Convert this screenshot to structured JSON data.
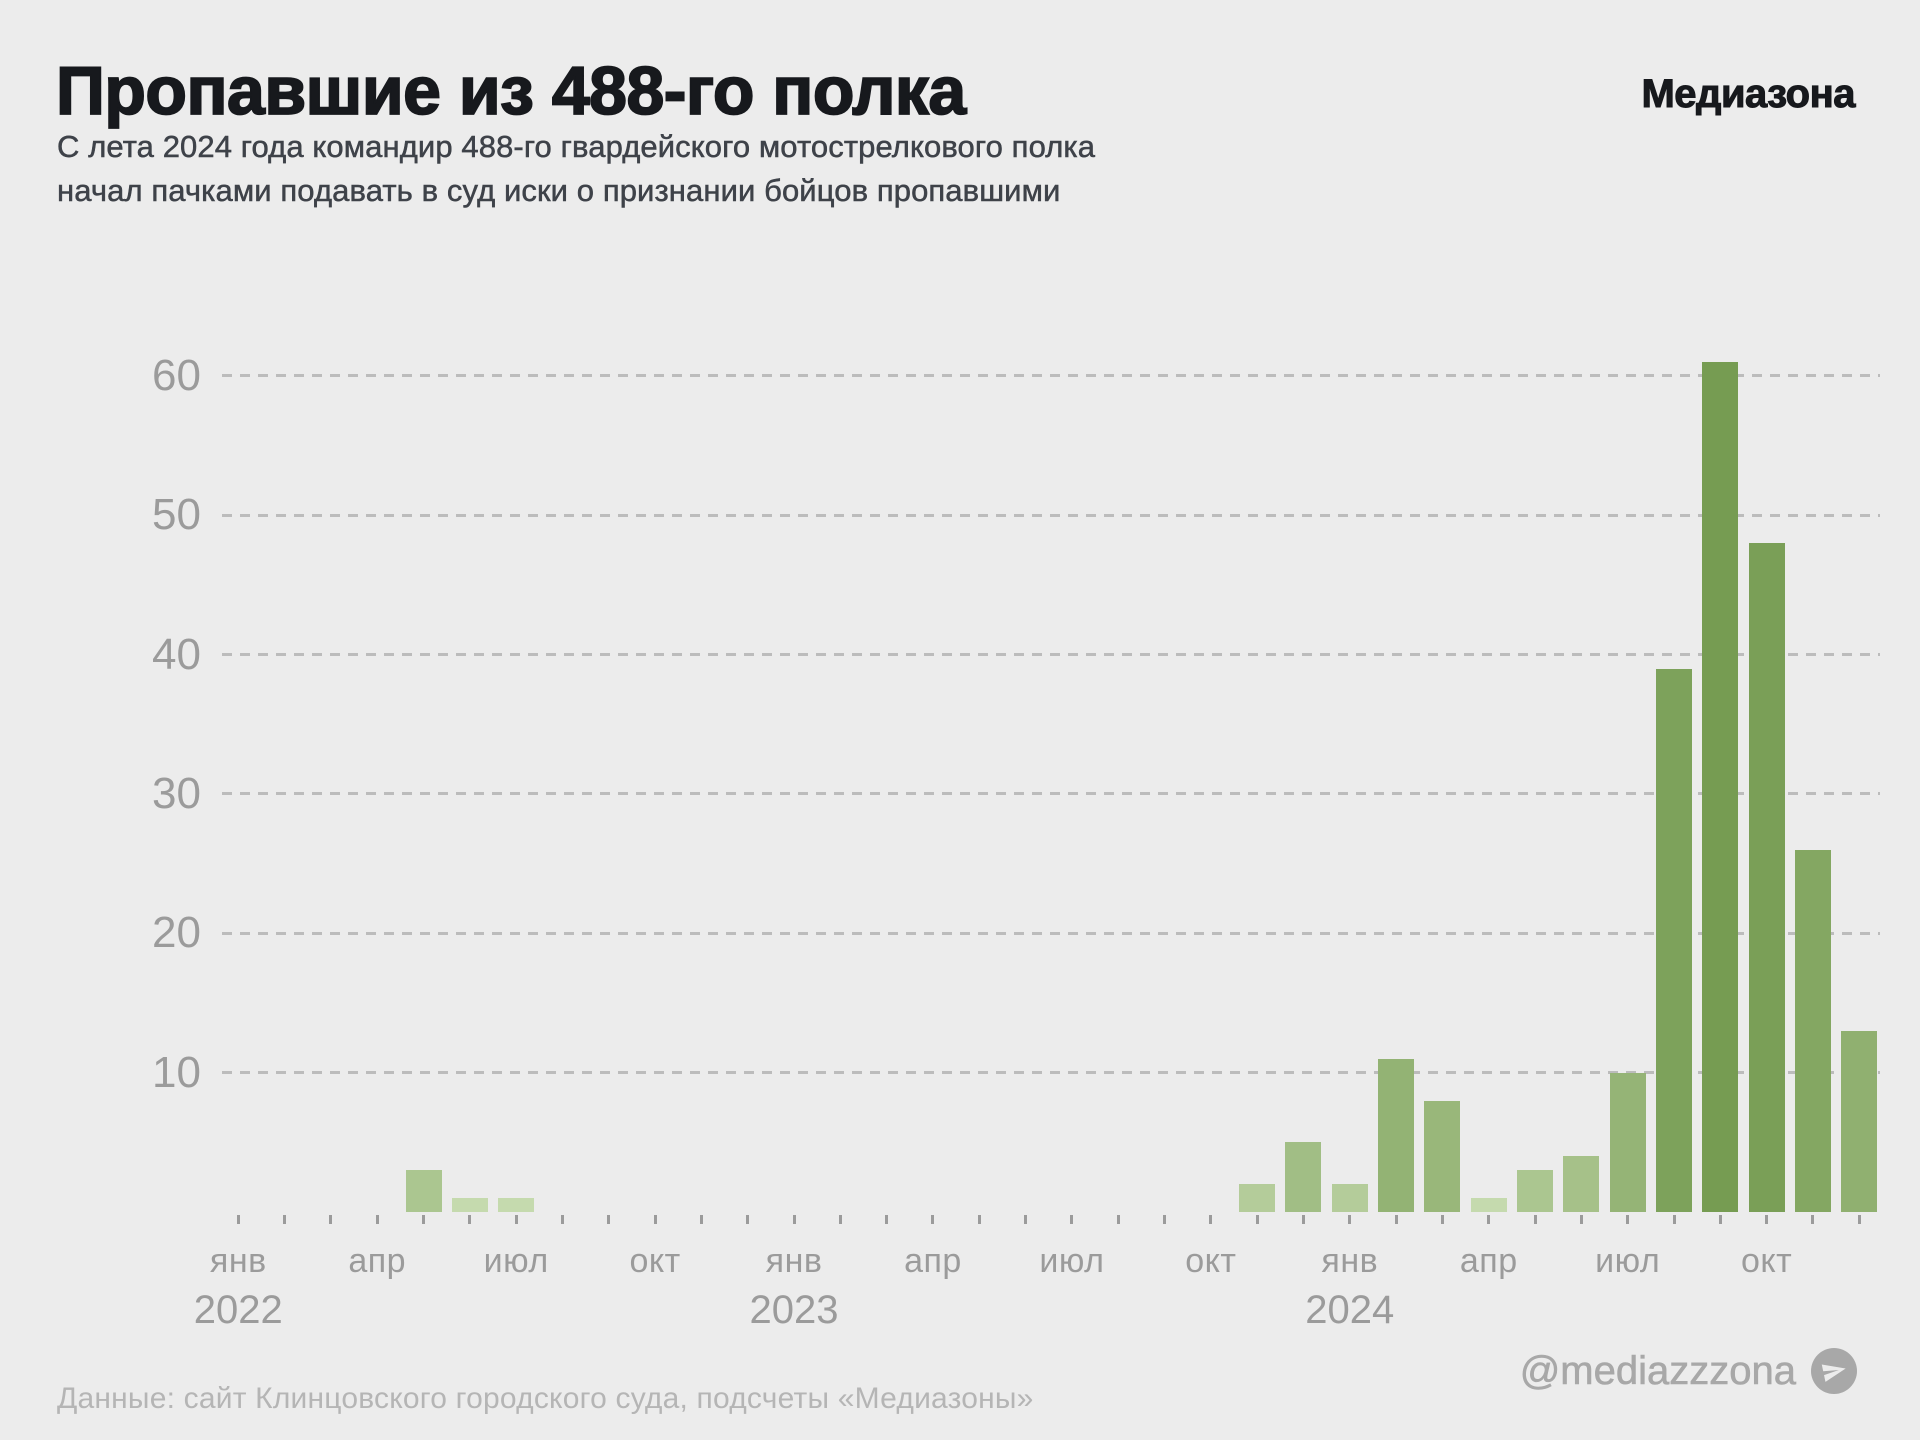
{
  "header": {
    "title": "Пропавшие из 488-го полка",
    "brand": "Медиазона",
    "subtitle_line1": "С лета 2024 года командир 488-го гвардейского мотострелкового полка",
    "subtitle_line2": "начал пачками подавать в суд иски о признании бойцов пропавшими"
  },
  "footer": {
    "source": "Данные: сайт Клинцовского городского суда, подсчеты «Медиазоны»",
    "telegram_handle": "@mediazzzona",
    "telegram_icon": "telegram-paper-plane-icon"
  },
  "chart_data": {
    "type": "bar",
    "title": "Пропавшие из 488-го полка",
    "xlabel": "",
    "ylabel": "",
    "ylim": [
      0,
      65
    ],
    "y_ticks": [
      10,
      20,
      30,
      40,
      50,
      60
    ],
    "grid": "horizontal dashed, labels left, no axis line",
    "x_tick_label_months": [
      "янв",
      "апр",
      "июл",
      "окт"
    ],
    "x_axis_years": [
      2022,
      2023,
      2024
    ],
    "color_scale": {
      "light": "#c5daae",
      "dark": "#769c52",
      "mapping": "darker green = higher value (log ramp)"
    },
    "months": [
      {
        "month": "янв",
        "year": 2022,
        "value": 0
      },
      {
        "month": "фев",
        "year": 2022,
        "value": 0
      },
      {
        "month": "мар",
        "year": 2022,
        "value": 0
      },
      {
        "month": "апр",
        "year": 2022,
        "value": 0
      },
      {
        "month": "май",
        "year": 2022,
        "value": 3
      },
      {
        "month": "июн",
        "year": 2022,
        "value": 1
      },
      {
        "month": "июл",
        "year": 2022,
        "value": 1
      },
      {
        "month": "авг",
        "year": 2022,
        "value": 0
      },
      {
        "month": "сен",
        "year": 2022,
        "value": 0
      },
      {
        "month": "окт",
        "year": 2022,
        "value": 0
      },
      {
        "month": "ноя",
        "year": 2022,
        "value": 0
      },
      {
        "month": "дек",
        "year": 2022,
        "value": 0
      },
      {
        "month": "янв",
        "year": 2023,
        "value": 0
      },
      {
        "month": "фев",
        "year": 2023,
        "value": 0
      },
      {
        "month": "мар",
        "year": 2023,
        "value": 0
      },
      {
        "month": "апр",
        "year": 2023,
        "value": 0
      },
      {
        "month": "май",
        "year": 2023,
        "value": 0
      },
      {
        "month": "июн",
        "year": 2023,
        "value": 0
      },
      {
        "month": "июл",
        "year": 2023,
        "value": 0
      },
      {
        "month": "авг",
        "year": 2023,
        "value": 0
      },
      {
        "month": "сен",
        "year": 2023,
        "value": 0
      },
      {
        "month": "окт",
        "year": 2023,
        "value": 0
      },
      {
        "month": "ноя",
        "year": 2023,
        "value": 2
      },
      {
        "month": "дек",
        "year": 2023,
        "value": 5
      },
      {
        "month": "янв",
        "year": 2024,
        "value": 2
      },
      {
        "month": "фев",
        "year": 2024,
        "value": 11
      },
      {
        "month": "мар",
        "year": 2024,
        "value": 8
      },
      {
        "month": "апр",
        "year": 2024,
        "value": 1
      },
      {
        "month": "май",
        "year": 2024,
        "value": 3
      },
      {
        "month": "июн",
        "year": 2024,
        "value": 4
      },
      {
        "month": "июл",
        "year": 2024,
        "value": 10
      },
      {
        "month": "авг",
        "year": 2024,
        "value": 39
      },
      {
        "month": "сен",
        "year": 2024,
        "value": 61
      },
      {
        "month": "окт",
        "year": 2024,
        "value": 48
      },
      {
        "month": "ноя",
        "year": 2024,
        "value": 26
      },
      {
        "month": "дек",
        "year": 2024,
        "value": 13
      }
    ]
  }
}
